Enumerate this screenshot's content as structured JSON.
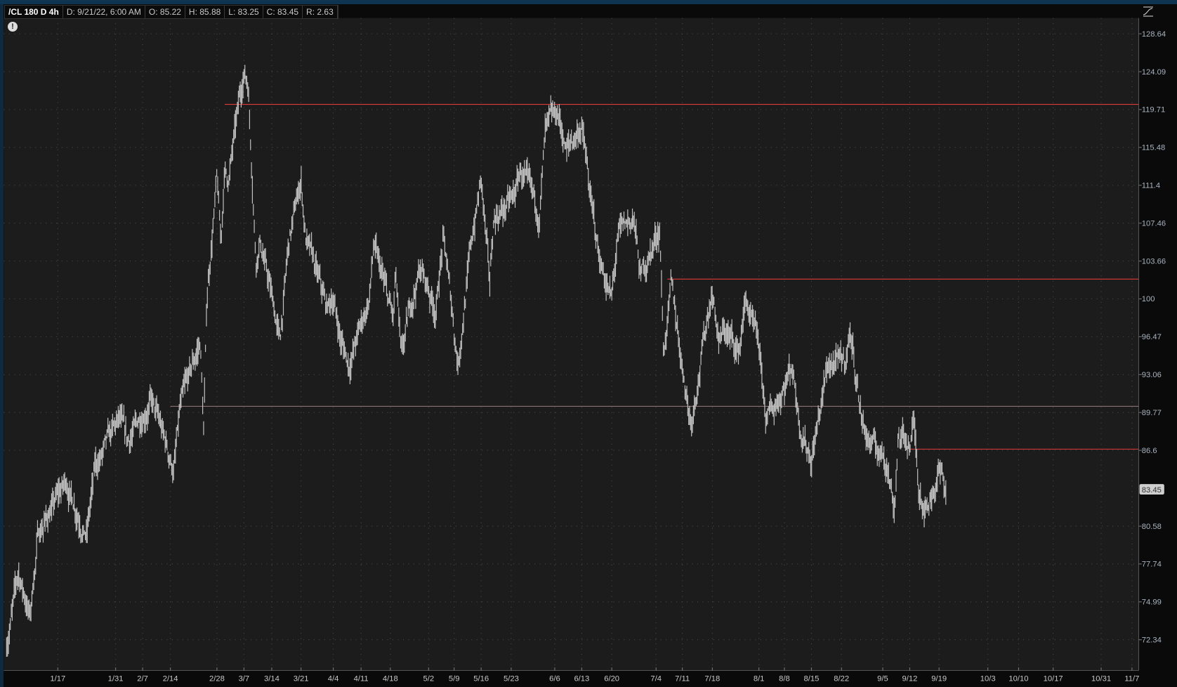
{
  "header": {
    "symbol": "/CL 180 D 4h",
    "date": "D: 9/21/22, 6:00 AM",
    "open": "O: 85.22",
    "high": "H: 85.88",
    "low": "L: 83.25",
    "close": "C: 83.45",
    "range": "R: 2.63"
  },
  "icons": {
    "alert": "exclamation-circle-icon",
    "study": "study-curve-icon"
  },
  "alert_glyph": "!",
  "colors": {
    "background": "#1c1c1c",
    "bars": "#c4c4c4",
    "resistance_line": "#e03a3a",
    "support_line": "#9a7f7f",
    "axis_text": "#a8b4c0",
    "price_label_bg": "#cfcfcf"
  },
  "chart_data": {
    "type": "bar",
    "style": "OHLC bars, 4 hour",
    "y_scale": "log",
    "ylim": [
      71.5,
      130
    ],
    "grid": true,
    "y_ticks": [
      "128.64",
      "124.09",
      "119.71",
      "115.48",
      "111.4",
      "107.46",
      "103.66",
      "100",
      "96.47",
      "93.06",
      "89.77",
      "86.6",
      "80.58",
      "77.74",
      "74.99",
      "72.34"
    ],
    "x_ticks": [
      "1/17",
      "1/31",
      "2/7",
      "2/14",
      "2/28",
      "3/7",
      "3/14",
      "3/21",
      "4/4",
      "4/11",
      "4/18",
      "5/2",
      "5/9",
      "5/16",
      "5/23",
      "6/6",
      "6/13",
      "6/20",
      "7/4",
      "7/11",
      "7/18",
      "8/1",
      "8/8",
      "8/15",
      "8/22",
      "9/5",
      "9/12",
      "9/19",
      "10/3",
      "10/10",
      "10/17",
      "10/31",
      "11/7"
    ],
    "current_price": "83.45",
    "approx_price_path": [
      [
        "1/4",
        72
      ],
      [
        "1/7",
        77
      ],
      [
        "1/10",
        74
      ],
      [
        "1/12",
        80
      ],
      [
        "1/19",
        84
      ],
      [
        "1/24",
        80
      ],
      [
        "1/26",
        85
      ],
      [
        "2/1",
        89
      ],
      [
        "2/3",
        87
      ],
      [
        "2/9",
        91
      ],
      [
        "2/15",
        85
      ],
      [
        "2/17",
        90
      ],
      [
        "2/23",
        96
      ],
      [
        "2/24",
        88
      ],
      [
        "2/25",
        100
      ],
      [
        "2/28",
        112
      ],
      [
        "3/1",
        105
      ],
      [
        "3/2",
        113
      ],
      [
        "3/3",
        112
      ],
      [
        "3/4",
        115
      ],
      [
        "3/7",
        124
      ],
      [
        "3/8",
        123
      ],
      [
        "3/10",
        104
      ],
      [
        "3/11",
        106
      ],
      [
        "3/16",
        96
      ],
      [
        "3/18",
        105
      ],
      [
        "3/21",
        112
      ],
      [
        "3/23",
        106
      ],
      [
        "4/1",
        99
      ],
      [
        "4/4",
        100
      ],
      [
        "4/6",
        96
      ],
      [
        "4/8",
        94
      ],
      [
        "4/13",
        100
      ],
      [
        "4/14",
        105
      ],
      [
        "4/19",
        98
      ],
      [
        "4/20",
        102
      ],
      [
        "4/22",
        94
      ],
      [
        "4/26",
        100
      ],
      [
        "4/29",
        103
      ],
      [
        "5/4",
        99
      ],
      [
        "5/6",
        106
      ],
      [
        "5/10",
        94
      ],
      [
        "5/13",
        104
      ],
      [
        "5/16",
        112
      ],
      [
        "5/18",
        101
      ],
      [
        "5/19",
        108
      ],
      [
        "5/24",
        110
      ],
      [
        "5/26",
        113
      ],
      [
        "6/1",
        108
      ],
      [
        "6/3",
        117
      ],
      [
        "6/7",
        119
      ],
      [
        "6/9",
        115
      ],
      [
        "6/13",
        118
      ],
      [
        "6/15",
        110
      ],
      [
        "6/17",
        104
      ],
      [
        "6/20",
        100
      ],
      [
        "6/22",
        106
      ],
      [
        "6/27",
        108
      ],
      [
        "6/29",
        102
      ],
      [
        "7/5",
        107
      ],
      [
        "7/6",
        95
      ],
      [
        "7/8",
        101
      ],
      [
        "7/11",
        94
      ],
      [
        "7/13",
        89
      ],
      [
        "7/18",
        101
      ],
      [
        "7/20",
        96
      ],
      [
        "7/22",
        97
      ],
      [
        "7/26",
        95
      ],
      [
        "7/28",
        100
      ],
      [
        "8/1",
        95
      ],
      [
        "8/3",
        89
      ],
      [
        "8/5",
        90
      ],
      [
        "8/10",
        94
      ],
      [
        "8/12",
        89
      ],
      [
        "8/15",
        86
      ],
      [
        "8/17",
        90
      ],
      [
        "8/19",
        94
      ],
      [
        "8/23",
        94
      ],
      [
        "8/25",
        97
      ],
      [
        "8/29",
        89
      ],
      [
        "9/1",
        87
      ],
      [
        "9/6",
        86
      ],
      [
        "9/8",
        82
      ],
      [
        "9/9",
        88
      ],
      [
        "9/12",
        87
      ],
      [
        "9/13",
        89
      ],
      [
        "9/14",
        84
      ],
      [
        "9/16",
        82
      ],
      [
        "9/19",
        85
      ],
      [
        "9/21",
        83.45
      ]
    ],
    "horizontal_lines": [
      {
        "price": 120.3,
        "from": "3/2",
        "color": "red"
      },
      {
        "price": 101.9,
        "from": "7/7",
        "color": "red"
      },
      {
        "price": 90.3,
        "from": "2/14",
        "color": "gray"
      },
      {
        "price": 86.7,
        "from": "9/12",
        "color": "red"
      }
    ]
  }
}
